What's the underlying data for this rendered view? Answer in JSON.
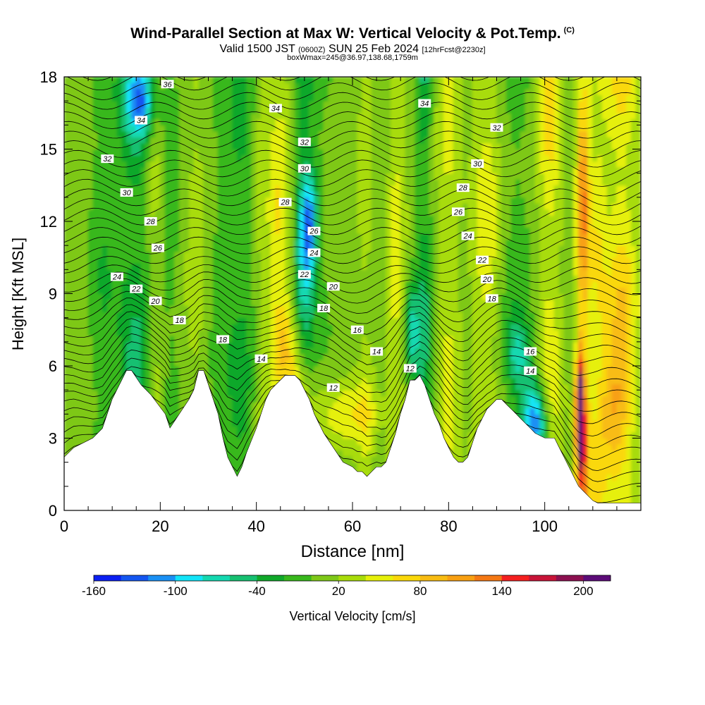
{
  "header": {
    "title": "Wind-Parallel Section at Max W: Vertical Velocity & Pot.Temp.",
    "title_unit": "(C)",
    "valid_prefix": "Valid 1500 JST",
    "valid_utc": "(0600Z)",
    "valid_date": "SUN 25 Feb 2024",
    "forecast_info": "[12hrFcst@2230z]",
    "box_info": "boxWmax=245@36.97,138.68,1759m"
  },
  "chart_data": {
    "type": "heatmap",
    "xlabel": "Distance [nm]",
    "ylabel": "Height [Kft MSL]",
    "xlim": [
      0,
      120
    ],
    "ylim": [
      0,
      18
    ],
    "xticks": [
      0,
      20,
      40,
      60,
      80,
      100
    ],
    "yticks": [
      0,
      3,
      6,
      9,
      12,
      15,
      18
    ],
    "terrain_profile": {
      "x": [
        0,
        2,
        6,
        8,
        10,
        12,
        13,
        14,
        16,
        18,
        21,
        22,
        24,
        26,
        27,
        28,
        29,
        30,
        31,
        32,
        33,
        34,
        35,
        36,
        37,
        38,
        40,
        41,
        42,
        43,
        44,
        45,
        46,
        47,
        48,
        49,
        50,
        51,
        52,
        54,
        56,
        58,
        60,
        61,
        62,
        63,
        64,
        65,
        66,
        67,
        68,
        69,
        70,
        71,
        72,
        73,
        74,
        75,
        76,
        77,
        78,
        79,
        80,
        81,
        82,
        83,
        84,
        85,
        86,
        87,
        88,
        89,
        90,
        91,
        92,
        93,
        94,
        95,
        96,
        97,
        98,
        100,
        102,
        103,
        104,
        105,
        106,
        107,
        108,
        109,
        110,
        111,
        112,
        114,
        116,
        118,
        120
      ],
      "height": [
        2.2,
        2.6,
        3.0,
        3.4,
        4.6,
        5.4,
        5.8,
        5.8,
        5.2,
        4.8,
        4.0,
        3.4,
        4.0,
        4.6,
        5.0,
        5.8,
        5.8,
        5.2,
        4.6,
        4.0,
        3.0,
        2.2,
        1.8,
        1.4,
        1.8,
        2.4,
        3.4,
        4.0,
        4.6,
        5.0,
        5.2,
        5.4,
        5.6,
        5.6,
        5.6,
        5.4,
        5.0,
        4.6,
        4.0,
        3.2,
        2.6,
        2.0,
        1.8,
        1.6,
        1.6,
        1.4,
        1.6,
        1.8,
        1.8,
        2.0,
        2.6,
        3.2,
        4.0,
        4.6,
        5.4,
        5.4,
        5.6,
        5.2,
        4.6,
        4.0,
        3.6,
        3.0,
        2.6,
        2.2,
        2.0,
        2.0,
        2.2,
        2.8,
        3.4,
        3.8,
        4.2,
        4.4,
        4.6,
        4.6,
        4.4,
        4.2,
        4.0,
        3.8,
        3.6,
        3.4,
        3.2,
        3.0,
        3.0,
        2.6,
        2.2,
        1.8,
        1.4,
        1.0,
        0.8,
        0.6,
        0.4,
        0.3,
        0.3,
        0.3,
        0.3,
        0.3,
        0.3
      ]
    },
    "vertical_velocity": {
      "name": "Vertical Velocity [cm/s]",
      "background": 10,
      "bands": [
        {
          "x": 1,
          "w": 3,
          "v": 10
        },
        {
          "x": 8,
          "w": 3,
          "v": -30
        },
        {
          "x": 15,
          "w": 4,
          "v": -60
        },
        {
          "x": 19,
          "w": 2,
          "v": 40
        },
        {
          "x": 22,
          "w": 3,
          "v": -25
        },
        {
          "x": 28,
          "w": 3,
          "v": 30
        },
        {
          "x": 31,
          "w": 3,
          "v": -20
        },
        {
          "x": 37,
          "w": 4,
          "v": -40
        },
        {
          "x": 41,
          "w": 2,
          "v": 30
        },
        {
          "x": 45,
          "w": 2.5,
          "v": 55
        },
        {
          "x": 50,
          "w": 2.5,
          "v": -80
        },
        {
          "x": 55,
          "w": 4,
          "v": -10
        },
        {
          "x": 63,
          "w": 2,
          "v": 25
        },
        {
          "x": 66,
          "w": 2.5,
          "v": -15
        },
        {
          "x": 69,
          "w": 2,
          "v": 50
        },
        {
          "x": 75,
          "w": 1.6,
          "v": -60
        },
        {
          "x": 80,
          "w": 2.5,
          "v": 40
        },
        {
          "x": 88,
          "w": 3,
          "v": 50
        },
        {
          "x": 94,
          "w": 4,
          "v": -25
        },
        {
          "x": 101,
          "w": 2.5,
          "v": 60
        },
        {
          "x": 108,
          "w": 1.4,
          "v": 120
        },
        {
          "x": 111,
          "w": 2,
          "v": 45
        },
        {
          "x": 116,
          "w": 3.5,
          "v": 75
        }
      ],
      "blobs": [
        {
          "x": 107.4,
          "y": 4.2,
          "w": 0.9,
          "h": 2.2,
          "v": 210
        },
        {
          "x": 98.2,
          "y": 3.6,
          "w": 2.8,
          "h": 1.8,
          "v": -135
        },
        {
          "x": 94.5,
          "y": 6.5,
          "w": 2.5,
          "h": 1.5,
          "v": -60
        },
        {
          "x": 59,
          "y": 4.0,
          "w": 7,
          "h": 1.4,
          "v": 50
        },
        {
          "x": 49,
          "y": 5.0,
          "w": 3,
          "h": 2.0,
          "v": 50
        },
        {
          "x": 46,
          "y": 7.0,
          "w": 3,
          "h": 1.8,
          "v": 55
        },
        {
          "x": 16,
          "y": 17.0,
          "w": 3,
          "h": 1.4,
          "v": -90
        },
        {
          "x": 51,
          "y": 12.0,
          "w": 1.6,
          "h": 2.0,
          "v": -90
        },
        {
          "x": 72.5,
          "y": 7.5,
          "w": 1.5,
          "h": 2.0,
          "v": -80
        },
        {
          "x": 114,
          "y": 4.0,
          "w": 3.5,
          "h": 2.5,
          "v": 60
        }
      ]
    },
    "colorbar": {
      "label": "Vertical Velocity [cm/s]",
      "tick_labels": [
        "-160",
        "-100",
        "-40",
        "20",
        "80",
        "140",
        "200"
      ],
      "levels": [
        -160,
        -140,
        -120,
        -100,
        -80,
        -60,
        -40,
        -20,
        0,
        20,
        40,
        60,
        80,
        100,
        120,
        140,
        160,
        180,
        200,
        220
      ],
      "colors": [
        "#0b1ff2",
        "#1456f0",
        "#1a90f4",
        "#12e4f8",
        "#14d8b0",
        "#16c071",
        "#10a82a",
        "#38b81c",
        "#7ec818",
        "#a8dc0a",
        "#e6f00a",
        "#fad80a",
        "#f8bc12",
        "#f8a012",
        "#f47814",
        "#f42020",
        "#c81438",
        "#8c1050",
        "#5c0c78"
      ]
    },
    "theta_contour_labels": [
      {
        "text": "36",
        "x": 21.5,
        "y": 17.7
      },
      {
        "text": "34",
        "x": 16,
        "y": 16.2
      },
      {
        "text": "32",
        "x": 9,
        "y": 14.6
      },
      {
        "text": "30",
        "x": 13,
        "y": 13.2
      },
      {
        "text": "28",
        "x": 18,
        "y": 12.0
      },
      {
        "text": "26",
        "x": 19.5,
        "y": 10.9
      },
      {
        "text": "24",
        "x": 11,
        "y": 9.7
      },
      {
        "text": "22",
        "x": 15,
        "y": 9.2
      },
      {
        "text": "20",
        "x": 19,
        "y": 8.7
      },
      {
        "text": "18",
        "x": 24,
        "y": 7.9
      },
      {
        "text": "18",
        "x": 33,
        "y": 7.1
      },
      {
        "text": "14",
        "x": 41,
        "y": 6.3
      },
      {
        "text": "34",
        "x": 44,
        "y": 16.7
      },
      {
        "text": "32",
        "x": 50,
        "y": 15.3
      },
      {
        "text": "30",
        "x": 50,
        "y": 14.2
      },
      {
        "text": "28",
        "x": 46,
        "y": 12.8
      },
      {
        "text": "26",
        "x": 52,
        "y": 11.6
      },
      {
        "text": "24",
        "x": 52,
        "y": 10.7
      },
      {
        "text": "22",
        "x": 50,
        "y": 9.8
      },
      {
        "text": "20",
        "x": 56,
        "y": 9.3
      },
      {
        "text": "18",
        "x": 54,
        "y": 8.4
      },
      {
        "text": "16",
        "x": 61,
        "y": 7.5
      },
      {
        "text": "14",
        "x": 65,
        "y": 6.6
      },
      {
        "text": "12",
        "x": 56,
        "y": 5.1
      },
      {
        "text": "12",
        "x": 72,
        "y": 5.9
      },
      {
        "text": "34",
        "x": 75,
        "y": 16.9
      },
      {
        "text": "32",
        "x": 90,
        "y": 15.9
      },
      {
        "text": "30",
        "x": 86,
        "y": 14.4
      },
      {
        "text": "28",
        "x": 83,
        "y": 13.4
      },
      {
        "text": "26",
        "x": 82,
        "y": 12.4
      },
      {
        "text": "24",
        "x": 84,
        "y": 11.4
      },
      {
        "text": "22",
        "x": 87,
        "y": 10.4
      },
      {
        "text": "20",
        "x": 88,
        "y": 9.6
      },
      {
        "text": "18",
        "x": 89,
        "y": 8.8
      },
      {
        "text": "16",
        "x": 97,
        "y": 6.6
      },
      {
        "text": "14",
        "x": 97,
        "y": 5.8
      }
    ]
  }
}
